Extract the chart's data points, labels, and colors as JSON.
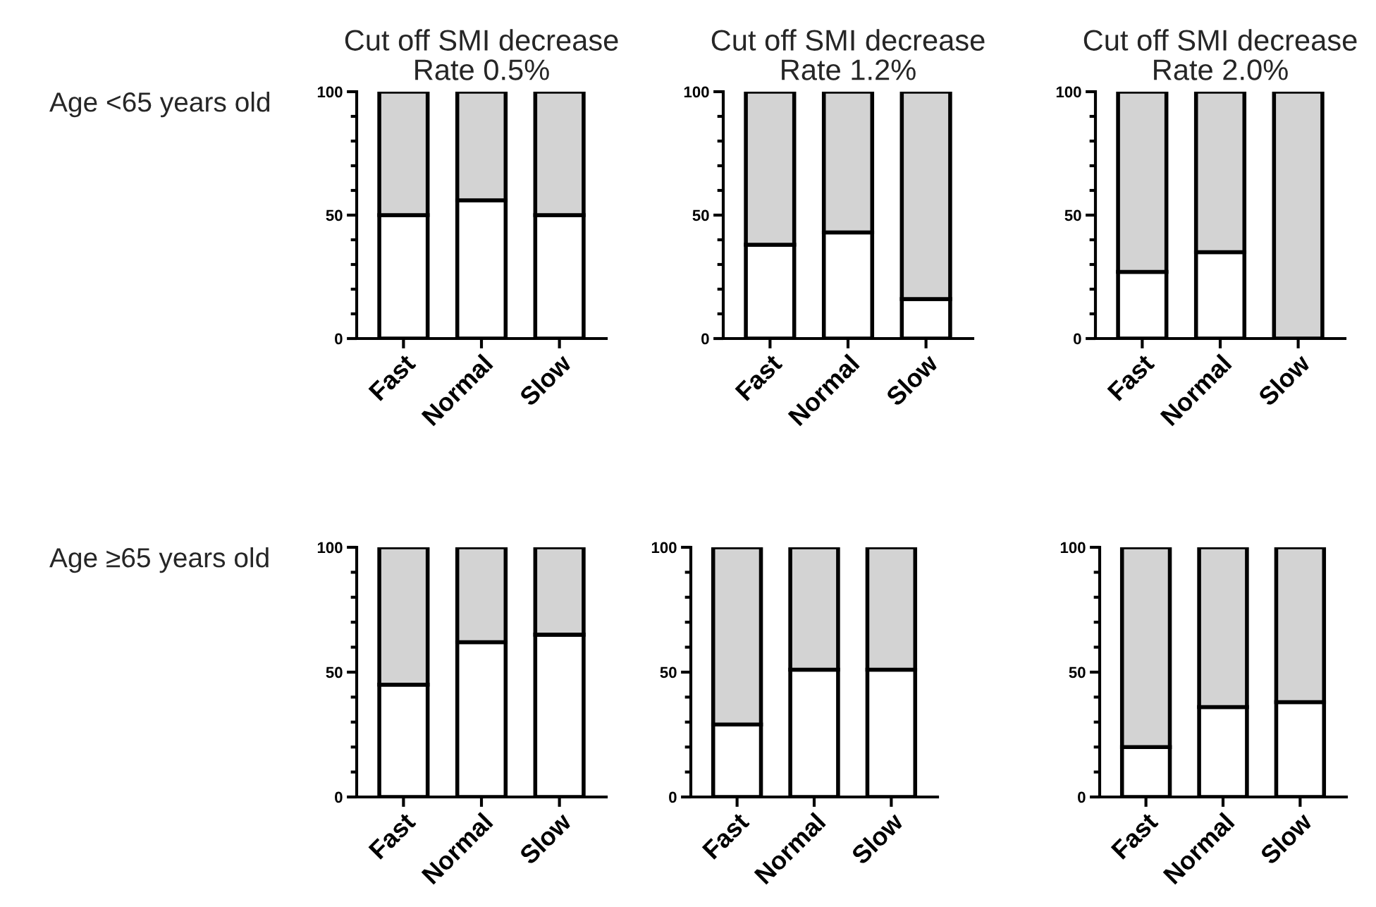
{
  "chart_data": [
    {
      "type": "bar",
      "stacked": true,
      "title": "Cut off SMI decrease\nRate 0.5%",
      "ylabel": "Age <65 years old",
      "categories": [
        "Fast",
        "Normal",
        "Slow"
      ],
      "series": [
        {
          "color": "#ffffff",
          "values": [
            50,
            56,
            50
          ]
        },
        {
          "color": "#d3d3d3",
          "values": [
            50,
            44,
            50
          ]
        }
      ],
      "ylim": [
        0,
        100
      ],
      "yticks": [
        0,
        {
          "value": 10,
          "label": null
        },
        {
          "value": 20,
          "label": null
        },
        {
          "value": 30,
          "label": null
        },
        {
          "value": 40,
          "label": null
        },
        50,
        {
          "value": 60,
          "label": null
        },
        {
          "value": 70,
          "label": null
        },
        {
          "value": 80,
          "label": null
        },
        {
          "value": 90,
          "label": null
        },
        100
      ]
    },
    {
      "type": "bar",
      "stacked": true,
      "title": "Cut off SMI decrease\nRate 1.2%",
      "categories": [
        "Fast",
        "Normal",
        "Slow"
      ],
      "series": [
        {
          "color": "#ffffff",
          "values": [
            38,
            43,
            16
          ]
        },
        {
          "color": "#d3d3d3",
          "values": [
            62,
            57,
            84
          ]
        }
      ],
      "ylim": [
        0,
        100
      ],
      "yticks": [
        0,
        {
          "value": 10,
          "label": null
        },
        {
          "value": 20,
          "label": null
        },
        {
          "value": 30,
          "label": null
        },
        {
          "value": 40,
          "label": null
        },
        50,
        {
          "value": 60,
          "label": null
        },
        {
          "value": 70,
          "label": null
        },
        {
          "value": 80,
          "label": null
        },
        {
          "value": 90,
          "label": null
        },
        100
      ]
    },
    {
      "type": "bar",
      "stacked": true,
      "title": "Cut off SMI decrease\nRate 2.0%",
      "categories": [
        "Fast",
        "Normal",
        "Slow"
      ],
      "series": [
        {
          "color": "#ffffff",
          "values": [
            27,
            35,
            0
          ]
        },
        {
          "color": "#d3d3d3",
          "values": [
            73,
            65,
            100
          ]
        }
      ],
      "ylim": [
        0,
        100
      ],
      "yticks": [
        0,
        {
          "value": 10,
          "label": null
        },
        {
          "value": 20,
          "label": null
        },
        {
          "value": 30,
          "label": null
        },
        {
          "value": 40,
          "label": null
        },
        50,
        {
          "value": 60,
          "label": null
        },
        {
          "value": 70,
          "label": null
        },
        {
          "value": 80,
          "label": null
        },
        {
          "value": 90,
          "label": null
        },
        100
      ]
    },
    {
      "type": "bar",
      "stacked": true,
      "ylabel": "Age ≥65 years old",
      "categories": [
        "Fast",
        "Normal",
        "Slow"
      ],
      "series": [
        {
          "color": "#ffffff",
          "values": [
            45,
            62,
            65
          ]
        },
        {
          "color": "#d3d3d3",
          "values": [
            55,
            38,
            35
          ]
        }
      ],
      "ylim": [
        0,
        100
      ],
      "yticks": [
        0,
        {
          "value": 10,
          "label": null
        },
        {
          "value": 20,
          "label": null
        },
        {
          "value": 30,
          "label": null
        },
        {
          "value": 40,
          "label": null
        },
        50,
        {
          "value": 60,
          "label": null
        },
        {
          "value": 70,
          "label": null
        },
        {
          "value": 80,
          "label": null
        },
        {
          "value": 90,
          "label": null
        },
        100
      ]
    },
    {
      "type": "bar",
      "stacked": true,
      "categories": [
        "Fast",
        "Normal",
        "Slow"
      ],
      "series": [
        {
          "color": "#ffffff",
          "values": [
            29,
            51,
            51
          ]
        },
        {
          "color": "#d3d3d3",
          "values": [
            71,
            49,
            49
          ]
        }
      ],
      "ylim": [
        0,
        100
      ],
      "yticks": [
        0,
        {
          "value": 10,
          "label": null
        },
        {
          "value": 20,
          "label": null
        },
        {
          "value": 30,
          "label": null
        },
        {
          "value": 40,
          "label": null
        },
        50,
        {
          "value": 60,
          "label": null
        },
        {
          "value": 70,
          "label": null
        },
        {
          "value": 80,
          "label": null
        },
        {
          "value": 90,
          "label": null
        },
        100
      ]
    },
    {
      "type": "bar",
      "stacked": true,
      "categories": [
        "Fast",
        "Normal",
        "Slow"
      ],
      "series": [
        {
          "color": "#ffffff",
          "values": [
            20,
            36,
            38
          ]
        },
        {
          "color": "#d3d3d3",
          "values": [
            80,
            64,
            62
          ]
        }
      ],
      "ylim": [
        0,
        100
      ],
      "yticks": [
        0,
        {
          "value": 10,
          "label": null
        },
        {
          "value": 20,
          "label": null
        },
        {
          "value": 30,
          "label": null
        },
        {
          "value": 40,
          "label": null
        },
        50,
        {
          "value": 60,
          "label": null
        },
        {
          "value": 70,
          "label": null
        },
        {
          "value": 80,
          "label": null
        },
        {
          "value": 90,
          "label": null
        },
        100
      ]
    }
  ]
}
